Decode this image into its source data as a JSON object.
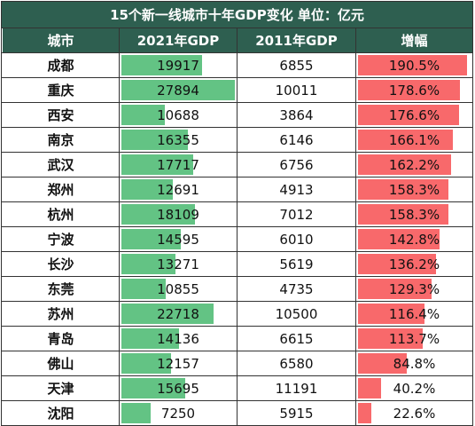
{
  "title": "15个新一线城市十年GDP变化    单位：亿元",
  "colors": {
    "header_bg": "#2e5f50",
    "gdp_bar": "#63c384",
    "growth_bar": "#f8696b"
  },
  "chart_data": {
    "type": "table",
    "title": "15个新一线城市十年GDP变化    单位：亿元",
    "columns": [
      "城市",
      "2021年GDP",
      "2011年GDP",
      "增幅"
    ],
    "rows": [
      {
        "city": "成都",
        "gdp_2021": 19917,
        "gdp_2011": 6855,
        "growth": "190.5%",
        "growth_value": 190.5
      },
      {
        "city": "重庆",
        "gdp_2021": 27894,
        "gdp_2011": 10011,
        "growth": "178.6%",
        "growth_value": 178.6
      },
      {
        "city": "西安",
        "gdp_2021": 10688,
        "gdp_2011": 3864,
        "growth": "176.6%",
        "growth_value": 176.6
      },
      {
        "city": "南京",
        "gdp_2021": 16355,
        "gdp_2011": 6146,
        "growth": "166.1%",
        "growth_value": 166.1
      },
      {
        "city": "武汉",
        "gdp_2021": 17717,
        "gdp_2011": 6756,
        "growth": "162.2%",
        "growth_value": 162.2
      },
      {
        "city": "郑州",
        "gdp_2021": 12691,
        "gdp_2011": 4913,
        "growth": "158.3%",
        "growth_value": 158.3
      },
      {
        "city": "杭州",
        "gdp_2021": 18109,
        "gdp_2011": 7012,
        "growth": "158.3%",
        "growth_value": 158.3
      },
      {
        "city": "宁波",
        "gdp_2021": 14595,
        "gdp_2011": 6010,
        "growth": "142.8%",
        "growth_value": 142.8
      },
      {
        "city": "长沙",
        "gdp_2021": 13271,
        "gdp_2011": 5619,
        "growth": "136.2%",
        "growth_value": 136.2
      },
      {
        "city": "东莞",
        "gdp_2021": 10855,
        "gdp_2011": 4735,
        "growth": "129.3%",
        "growth_value": 129.3
      },
      {
        "city": "苏州",
        "gdp_2021": 22718,
        "gdp_2011": 10500,
        "growth": "116.4%",
        "growth_value": 116.4
      },
      {
        "city": "青岛",
        "gdp_2021": 14136,
        "gdp_2011": 6615,
        "growth": "113.7%",
        "growth_value": 113.7
      },
      {
        "city": "佛山",
        "gdp_2021": 12157,
        "gdp_2011": 6580,
        "growth": "84.8%",
        "growth_value": 84.8
      },
      {
        "city": "天津",
        "gdp_2021": 15695,
        "gdp_2011": 11191,
        "growth": "40.2%",
        "growth_value": 40.2
      },
      {
        "city": "沈阳",
        "gdp_2021": 7250,
        "gdp_2011": 5915,
        "growth": "22.6%",
        "growth_value": 22.6
      }
    ]
  }
}
